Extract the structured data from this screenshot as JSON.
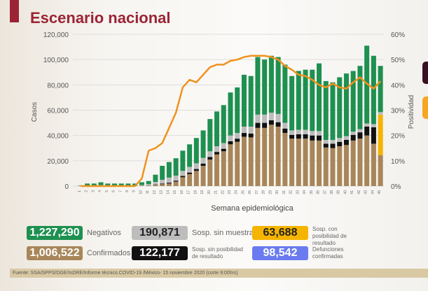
{
  "header": {
    "title": "Escenario nacional"
  },
  "colors": {
    "negativos": "#1e9050",
    "sin_muestra": "#bdbdbd",
    "sin_posibilidad": "#111111",
    "confirmados": "#a8865a",
    "con_posibilidad": "#f5b400",
    "defunciones": "#6a7bf0",
    "positividad": "#f0921e",
    "title": "#9b2335"
  },
  "chart_data": {
    "type": "bar",
    "stacked": true,
    "xlabel": "Semana epidemiológica",
    "ylabel": "Casos",
    "y2label": "Positividad",
    "ylim": [
      0,
      120000
    ],
    "y2lim": [
      0,
      60
    ],
    "yticks": [
      "0",
      "20,000",
      "40,000",
      "60,000",
      "80,000",
      "100,000",
      "120,000"
    ],
    "y2ticks": [
      "0%",
      "10%",
      "20%",
      "30%",
      "40%",
      "50%",
      "60%"
    ],
    "grid": true,
    "categories": [
      1,
      2,
      3,
      4,
      5,
      6,
      7,
      8,
      9,
      10,
      11,
      12,
      13,
      14,
      15,
      16,
      17,
      18,
      19,
      20,
      21,
      22,
      23,
      24,
      25,
      26,
      27,
      28,
      29,
      30,
      31,
      32,
      33,
      34,
      35,
      36,
      37,
      38,
      39,
      40,
      41,
      42,
      43,
      44,
      45
    ],
    "series": [
      {
        "key": "confirmados",
        "values": [
          100,
          200,
          200,
          300,
          200,
          200,
          200,
          200,
          200,
          300,
          500,
          1000,
          1500,
          2000,
          3500,
          7000,
          9500,
          12000,
          16000,
          21000,
          25000,
          27500,
          33000,
          35000,
          39000,
          38500,
          46000,
          46000,
          48500,
          47000,
          42000,
          37500,
          37500,
          37500,
          36000,
          36000,
          30500,
          30000,
          31500,
          32500,
          36000,
          37500,
          40000,
          33500,
          24500
        ]
      },
      {
        "key": "sin_posibilidad",
        "values": [
          0,
          0,
          0,
          0,
          0,
          0,
          0,
          0,
          0,
          0,
          0,
          300,
          500,
          700,
          800,
          1000,
          1200,
          1500,
          1800,
          2000,
          2000,
          2000,
          2500,
          2500,
          3000,
          3000,
          4000,
          4000,
          3500,
          3500,
          3500,
          3000,
          3500,
          3500,
          4000,
          4000,
          3000,
          3500,
          3500,
          4000,
          4500,
          5000,
          7000,
          13000,
          0
        ]
      },
      {
        "key": "con_posibilidad",
        "values": [
          0,
          0,
          0,
          0,
          0,
          0,
          0,
          0,
          0,
          0,
          0,
          0,
          0,
          0,
          0,
          0,
          0,
          0,
          0,
          0,
          0,
          0,
          0,
          0,
          0,
          0,
          0,
          0,
          0,
          0,
          0,
          0,
          0,
          0,
          0,
          0,
          0,
          0,
          0,
          0,
          0,
          0,
          0,
          0,
          32000
        ]
      },
      {
        "key": "sin_muestra",
        "values": [
          100,
          300,
          300,
          400,
          300,
          300,
          300,
          300,
          300,
          500,
          1000,
          2000,
          3000,
          4000,
          4000,
          4000,
          4500,
          4500,
          4500,
          4500,
          4500,
          4500,
          4500,
          4500,
          5000,
          5500,
          6500,
          6500,
          6000,
          6500,
          4500,
          3500,
          3500,
          3500,
          3500,
          3500,
          3000,
          3000,
          3000,
          3000,
          2500,
          2500,
          2500,
          2500,
          2000
        ]
      },
      {
        "key": "negativos",
        "values": [
          300,
          1500,
          1500,
          2300,
          1500,
          1500,
          1500,
          1500,
          1500,
          2200,
          2500,
          5700,
          11000,
          12300,
          13700,
          16000,
          17800,
          20000,
          21700,
          25500,
          27500,
          30000,
          34000,
          36000,
          41000,
          40000,
          45500,
          43500,
          45000,
          45000,
          46000,
          43000,
          46500,
          47500,
          48500,
          53500,
          46500,
          45500,
          48000,
          49500,
          48000,
          50000,
          61500,
          54000,
          36500
        ]
      }
    ],
    "line": {
      "key": "positividad",
      "axis": "right",
      "values": [
        0,
        0,
        0,
        0,
        0,
        0,
        0,
        0,
        0,
        3,
        14,
        15,
        17,
        23,
        29,
        39,
        42,
        41,
        44,
        47,
        48,
        48,
        49.5,
        50,
        51,
        51.5,
        51.5,
        51.5,
        51,
        50,
        47.5,
        46,
        44,
        43.5,
        42,
        40,
        39,
        40.5,
        39,
        38.5,
        41,
        43,
        40.5,
        38.5,
        41.5
      ]
    }
  },
  "summary": [
    {
      "key": "negativos",
      "value": "1,227,290",
      "label": "Negativos"
    },
    {
      "key": "sin_muestra",
      "value": "190,871",
      "label": "Sosp. sin muestra"
    },
    {
      "key": "con_posibilidad",
      "value": "63,688",
      "label": "Sosp. con posibilidad de resultado"
    },
    {
      "key": "confirmados",
      "value": "1,006,522",
      "label": "Confirmados"
    },
    {
      "key": "sin_posibilidad",
      "value": "122,177",
      "label": "Sosp. sin posibilidad de resultado"
    },
    {
      "key": "defunciones",
      "value": "98,542",
      "label": "Defunciones confirmadas"
    }
  ],
  "footer": {
    "source": "Fuente: SSA/SPPS/DGE/InDRE/Informe técnico.COVID-19 /México- 15 noviembre 2020 (corte 9:00hrs)"
  }
}
